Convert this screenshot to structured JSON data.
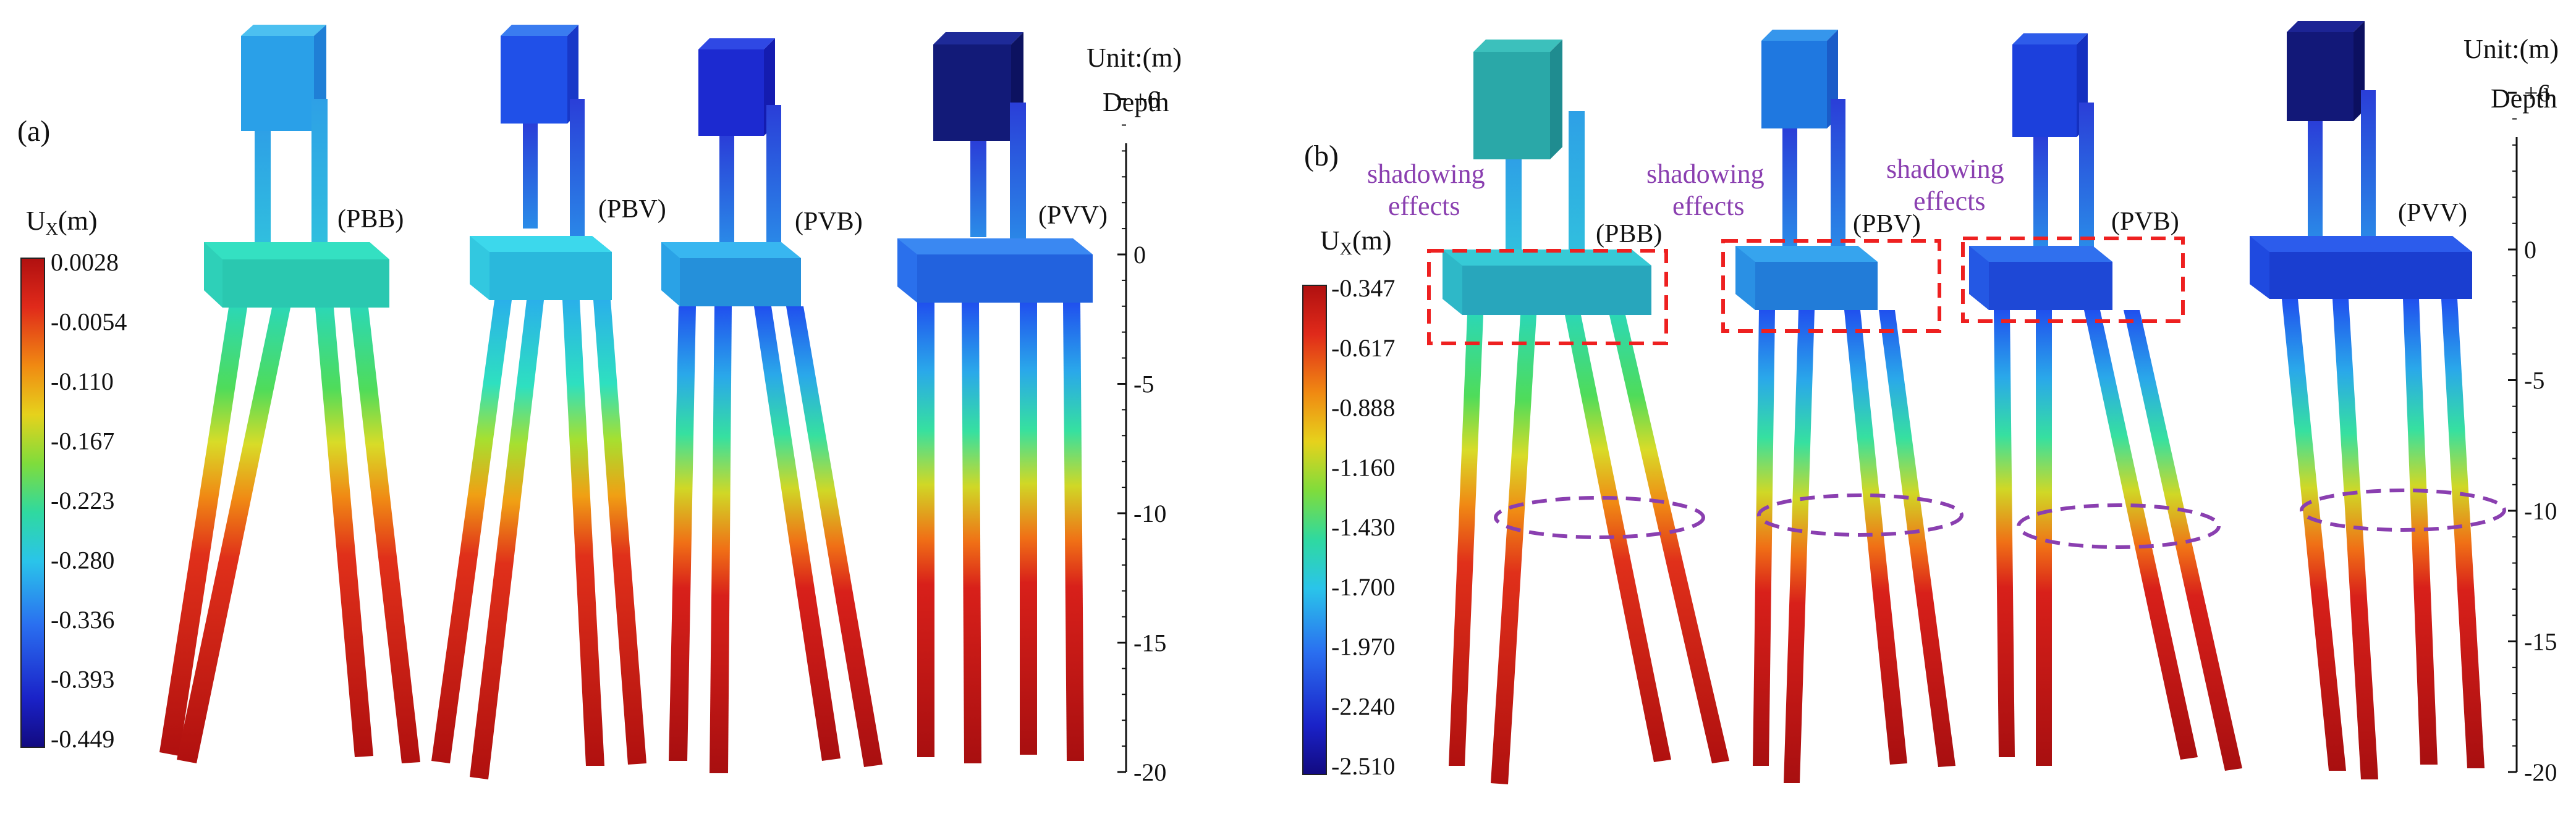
{
  "panel_a": {
    "label": "(a)",
    "legend_title": "U",
    "legend_sub": "X",
    "legend_unit": "(m)",
    "legend_values": [
      "0.0028",
      "-0.0054",
      "-0.110",
      "-0.167",
      "-0.223",
      "-0.280",
      "-0.336",
      "-0.393",
      "-0.449"
    ],
    "models": [
      "(PBB)",
      "(PBV)",
      "(PVB)",
      "(PVV)"
    ],
    "unit_label": "Unit:(m)",
    "depth_label": "Depth",
    "depth_ticks": [
      "+6",
      "0",
      "-5",
      "-10",
      "-15",
      "-20"
    ]
  },
  "panel_b": {
    "label": "(b)",
    "legend_title": "U",
    "legend_sub": "X",
    "legend_unit": "(m)",
    "legend_values": [
      "-0.347",
      "-0.617",
      "-0.888",
      "-1.160",
      "-1.430",
      "-1.700",
      "-1.970",
      "-2.240",
      "-2.510"
    ],
    "models": [
      "(PBB)",
      "(PBV)",
      "(PVB)",
      "(PVV)"
    ],
    "annotation_line1": "shadowing",
    "annotation_line2": "effects",
    "unit_label": "Unit:(m)",
    "depth_label": "Depth",
    "depth_ticks": [
      "+6",
      "0",
      "-5",
      "-10",
      "-15",
      "-20"
    ]
  },
  "colors": {
    "colormap": [
      "#1a0a8a",
      "#1f3ff0",
      "#2aa7ee",
      "#2fe0c8",
      "#36d36a",
      "#c6e22e",
      "#f5c21a",
      "#f07a12",
      "#d32020",
      "#a80f10"
    ],
    "highlight_box": "#ee2020",
    "ellipse": "#8a3fb0"
  }
}
